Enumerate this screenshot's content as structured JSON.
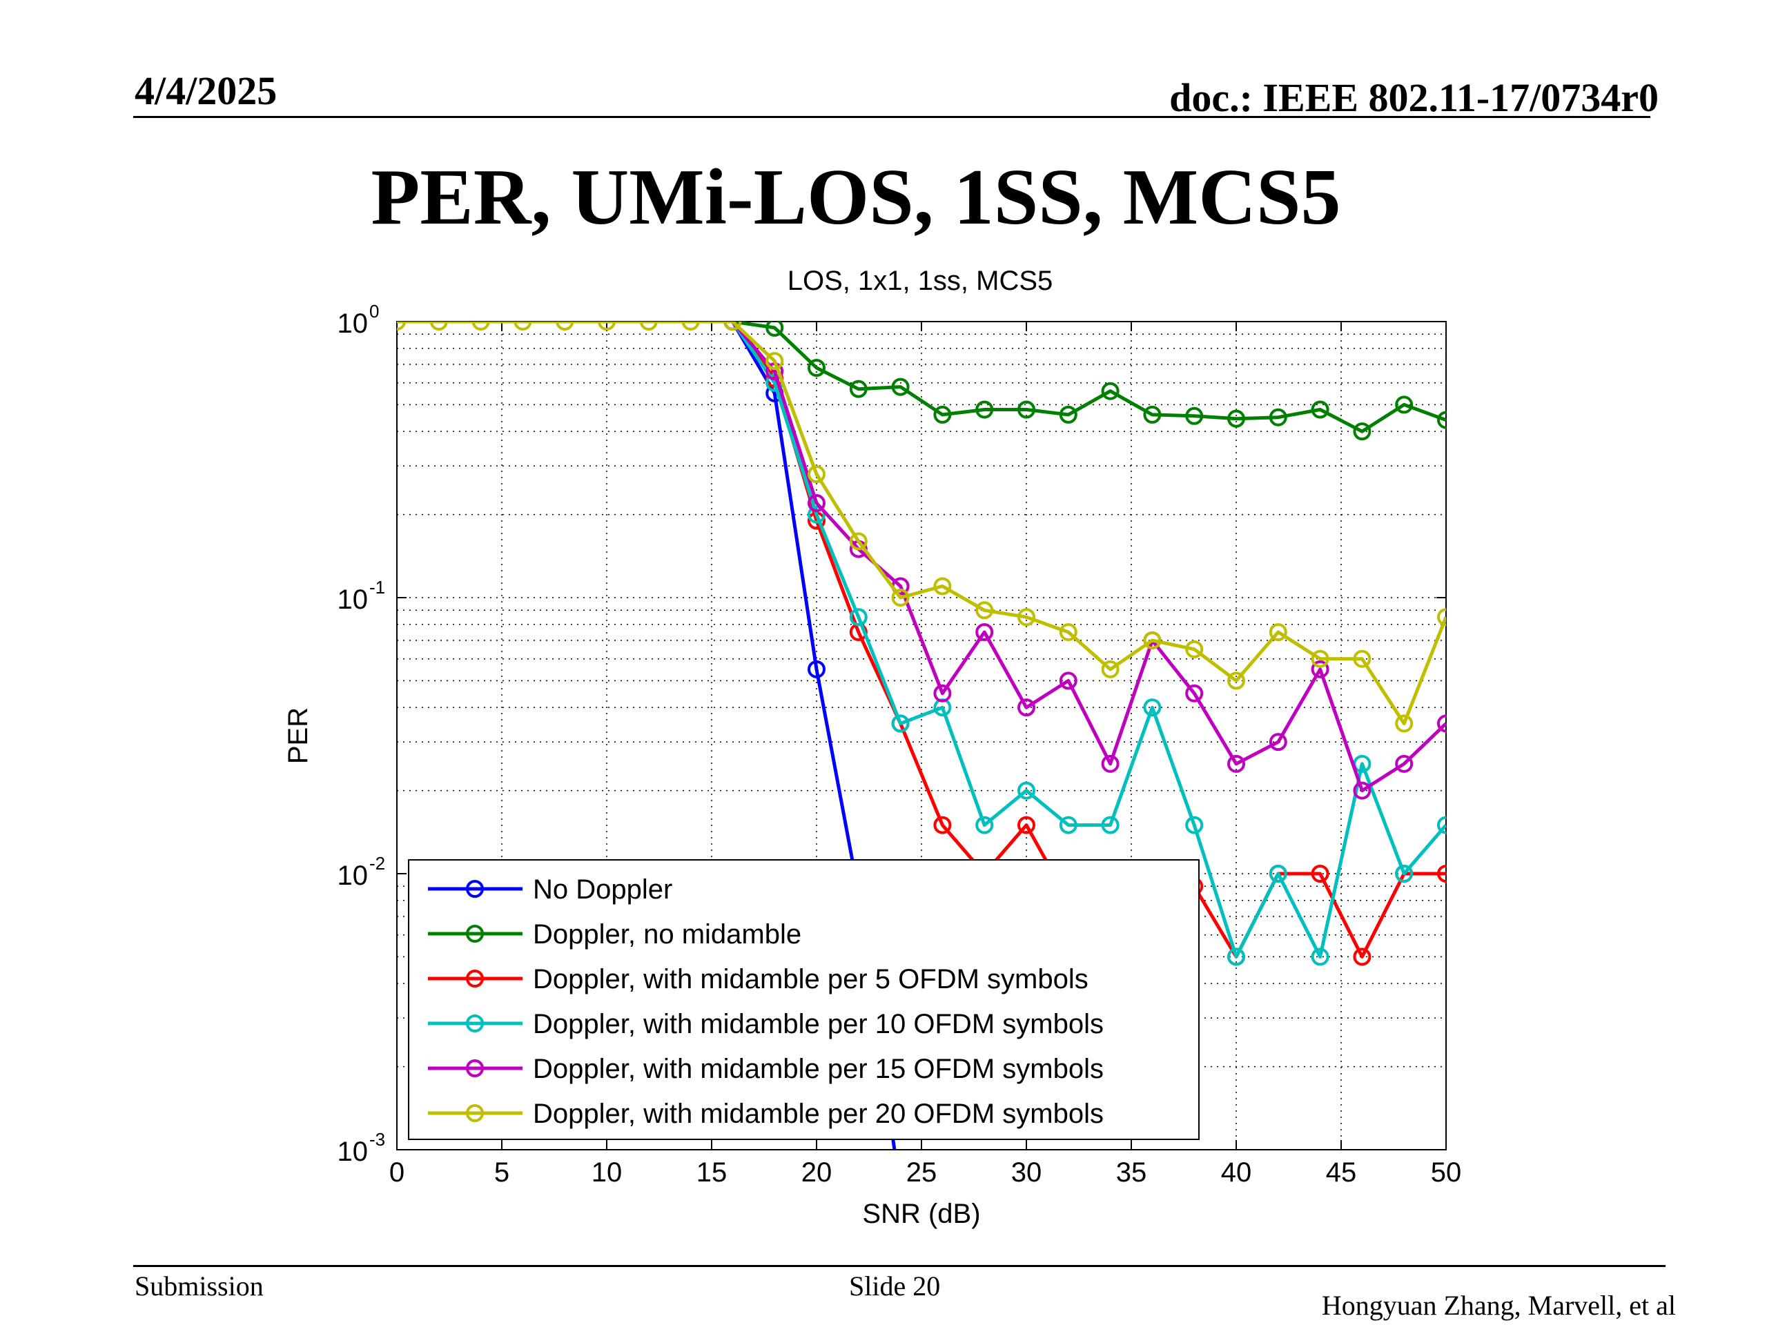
{
  "header": {
    "date": "4/4/2025",
    "doc": "doc.: IEEE 802.11-17/0734r0"
  },
  "slide_title": "PER, UMi-LOS, 1SS, MCS5",
  "footer": {
    "submission": "Submission",
    "slide": "Slide 20",
    "author": "Hongyuan Zhang, Marvell, et al"
  },
  "chart_data": {
    "type": "line",
    "title": "LOS, 1x1, 1ss, MCS5",
    "xlabel": "SNR (dB)",
    "ylabel": "PER",
    "xlim": [
      0,
      50
    ],
    "ylim": [
      0.001,
      1
    ],
    "yscale": "log",
    "grid": true,
    "legend_position": "bottom-left",
    "x_ticks": [
      0,
      5,
      10,
      15,
      20,
      25,
      30,
      35,
      40,
      45,
      50
    ],
    "y_ticks": [
      {
        "value": 1,
        "base": "10",
        "exp": "0"
      },
      {
        "value": 0.1,
        "base": "10",
        "exp": "-1"
      },
      {
        "value": 0.01,
        "base": "10",
        "exp": "-2"
      },
      {
        "value": 0.001,
        "base": "10",
        "exp": "-3"
      }
    ],
    "series": [
      {
        "name": "No Doppler",
        "color": "#0000ff",
        "x": [
          16,
          18,
          20,
          22,
          24
        ],
        "y": [
          1.0,
          0.55,
          0.055,
          0.0085,
          0.0007
        ]
      },
      {
        "name": "Doppler, no midamble",
        "color": "#008000",
        "x": [
          16,
          18,
          20,
          22,
          24,
          26,
          28,
          30,
          32,
          34,
          36,
          38,
          40,
          42,
          44,
          46,
          48,
          50
        ],
        "y": [
          1.0,
          0.95,
          0.68,
          0.57,
          0.58,
          0.46,
          0.48,
          0.48,
          0.46,
          0.56,
          0.46,
          0.455,
          0.445,
          0.45,
          0.48,
          0.4,
          0.5,
          0.44
        ]
      },
      {
        "name": "Doppler, with midamble per 5 OFDM symbols",
        "color": "#ff0000",
        "x": [
          16,
          18,
          20,
          22,
          24,
          26,
          28,
          30,
          32,
          34,
          36,
          38,
          40,
          42,
          44,
          46,
          48,
          50
        ],
        "y": [
          1.0,
          0.62,
          0.19,
          0.075,
          0.035,
          0.015,
          0.01,
          0.015,
          0.008,
          0.007,
          0.008,
          0.009,
          0.005,
          0.01,
          0.01,
          0.005,
          0.01,
          0.01
        ]
      },
      {
        "name": "Doppler, with midamble per 10 OFDM symbols",
        "color": "#00bfbf",
        "x": [
          16,
          18,
          20,
          22,
          24,
          26,
          28,
          30,
          32,
          34,
          36,
          38,
          40,
          42,
          44,
          46,
          48,
          50
        ],
        "y": [
          1.0,
          0.6,
          0.2,
          0.085,
          0.035,
          0.04,
          0.015,
          0.02,
          0.015,
          0.015,
          0.04,
          0.015,
          0.005,
          0.01,
          0.005,
          0.025,
          0.01,
          0.015
        ]
      },
      {
        "name": "Doppler, with midamble per 15 OFDM symbols",
        "color": "#bf00bf",
        "x": [
          16,
          18,
          20,
          22,
          24,
          26,
          28,
          30,
          32,
          34,
          36,
          38,
          40,
          42,
          44,
          46,
          48,
          50
        ],
        "y": [
          1.0,
          0.66,
          0.22,
          0.15,
          0.11,
          0.045,
          0.075,
          0.04,
          0.05,
          0.025,
          0.07,
          0.045,
          0.025,
          0.03,
          0.055,
          0.02,
          0.025,
          0.035
        ]
      },
      {
        "name": "Doppler, with midamble per 20 OFDM symbols",
        "color": "#bfbf00",
        "x": [
          0,
          2,
          4,
          6,
          8,
          10,
          12,
          14,
          16,
          18,
          20,
          22,
          24,
          26,
          28,
          30,
          32,
          34,
          36,
          38,
          40,
          42,
          44,
          46,
          48,
          50
        ],
        "y": [
          1,
          1,
          1,
          1,
          1,
          1,
          1,
          1,
          1.0,
          0.72,
          0.28,
          0.16,
          0.1,
          0.11,
          0.09,
          0.085,
          0.075,
          0.055,
          0.07,
          0.065,
          0.05,
          0.075,
          0.06,
          0.06,
          0.035,
          0.085
        ]
      }
    ]
  }
}
